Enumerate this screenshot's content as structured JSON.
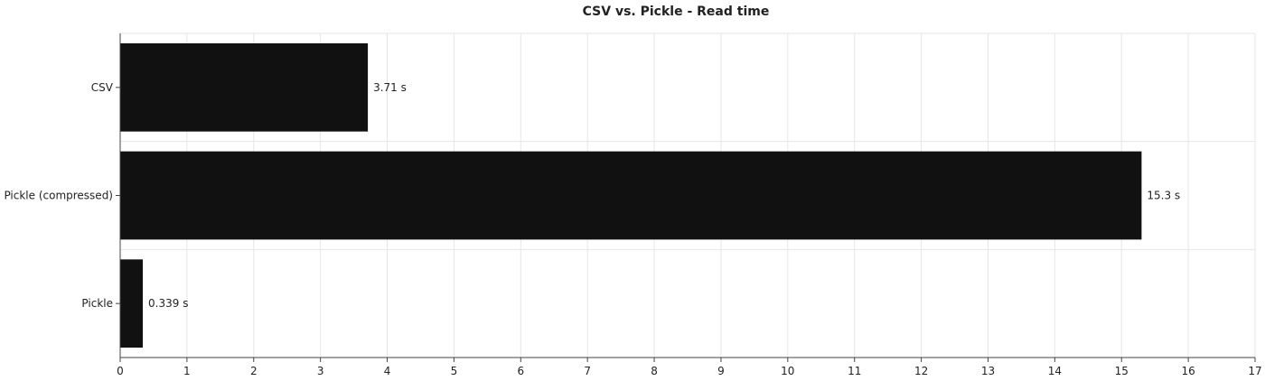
{
  "chart_data": {
    "type": "bar",
    "orientation": "horizontal",
    "title": "CSV vs. Pickle - Read time",
    "xlabel": "",
    "ylabel": "",
    "categories": [
      "CSV",
      "Pickle (compressed)",
      "Pickle"
    ],
    "values": [
      3.71,
      15.3,
      0.339
    ],
    "value_labels": [
      "3.71 s",
      "15.3 s",
      "0.339 s"
    ],
    "xlim": [
      0,
      17
    ],
    "xticks": [
      "0",
      "1",
      "2",
      "3",
      "4",
      "5",
      "6",
      "7",
      "8",
      "9",
      "10",
      "11",
      "12",
      "13",
      "14",
      "15",
      "16",
      "17"
    ],
    "grid": true,
    "legend": "none",
    "colors": {
      "bar": "#111111",
      "grid": "#e6e6e6",
      "axis": "#444444",
      "text": "#222222"
    }
  }
}
